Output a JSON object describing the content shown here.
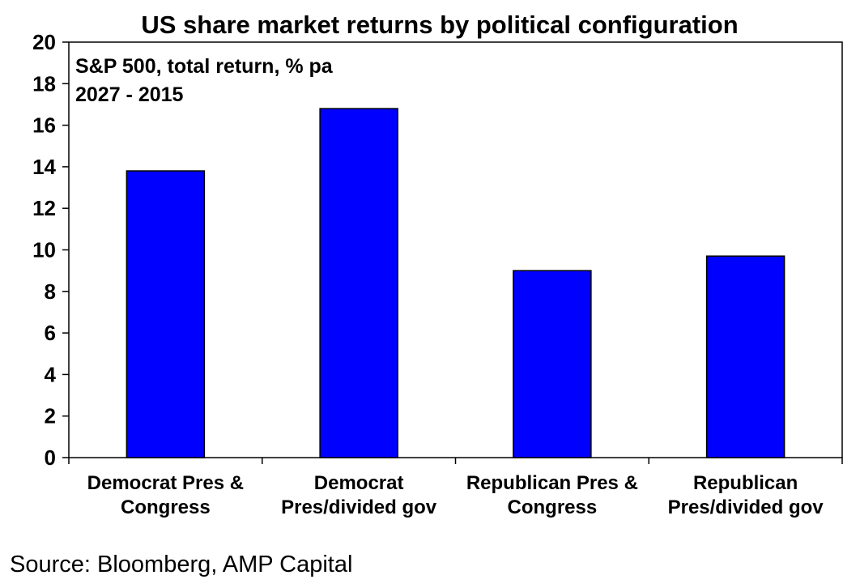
{
  "chart_data": {
    "type": "bar",
    "title": "US share market returns by political configuration",
    "subtitle_lines": [
      "S&P 500, total return, % pa",
      "2027 - 2015"
    ],
    "categories": [
      [
        "Democrat Pres &",
        "Congress"
      ],
      [
        "Democrat",
        "Pres/divided gov"
      ],
      [
        "Republican Pres &",
        "Congress"
      ],
      [
        "Republican",
        "Pres/divided gov"
      ]
    ],
    "values": [
      13.8,
      16.8,
      9.0,
      9.7
    ],
    "ylim": [
      0,
      20
    ],
    "yticks": [
      "0",
      "2",
      "4",
      "6",
      "8",
      "10",
      "12",
      "14",
      "16",
      "18",
      "20"
    ],
    "xlabel": "",
    "ylabel": "",
    "grid": false,
    "bar_color": "#0000FF",
    "source": "Source: Bloomberg, AMP Capital"
  }
}
